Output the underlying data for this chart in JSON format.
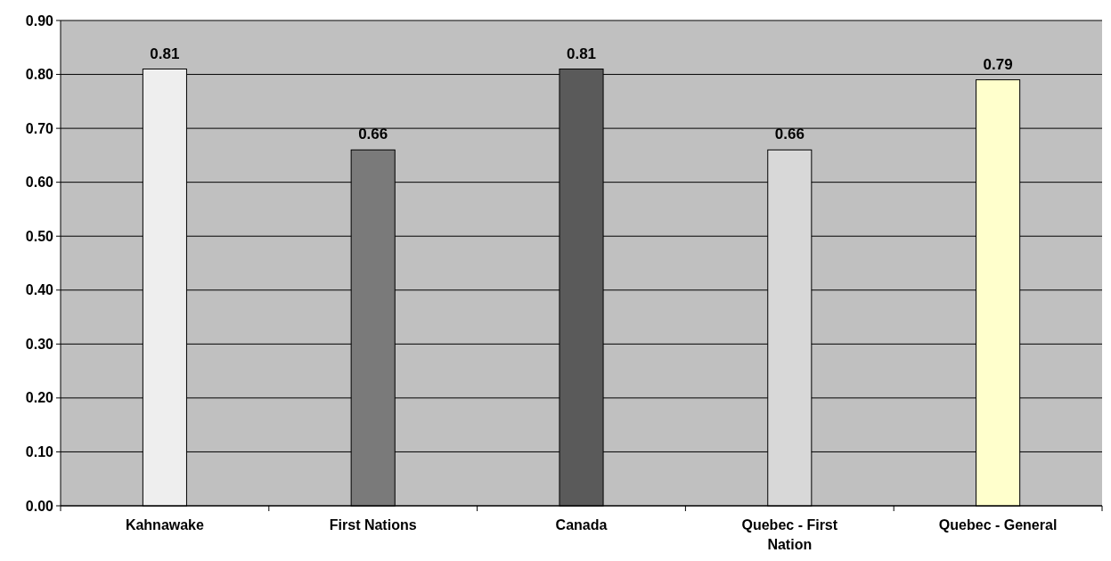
{
  "chart_data": {
    "type": "bar",
    "categories": [
      "Kahnawake",
      "First Nations",
      "Canada",
      "Quebec - First Nation",
      "Quebec - General"
    ],
    "values": [
      0.81,
      0.66,
      0.81,
      0.66,
      0.79
    ],
    "colors": [
      "#eeeeee",
      "#7a7a7a",
      "#5a5a5a",
      "#d8d8d8",
      "#ffffcc"
    ],
    "ylim": [
      0,
      0.9
    ],
    "yticks": [
      {
        "value": 0,
        "label": "0.00"
      },
      {
        "value": 0.1,
        "label": "0.10"
      },
      {
        "value": 0.2,
        "label": "0.20"
      },
      {
        "value": 0.3,
        "label": "0.30"
      },
      {
        "value": 0.4,
        "label": "0.40"
      },
      {
        "value": 0.5,
        "label": "0.50"
      },
      {
        "value": 0.6,
        "label": "0.60"
      },
      {
        "value": 0.7,
        "label": "0.70"
      },
      {
        "value": 0.8,
        "label": "0.80"
      },
      {
        "value": 0.9,
        "label": "0.90"
      }
    ],
    "grid": "y",
    "data_labels": true
  }
}
